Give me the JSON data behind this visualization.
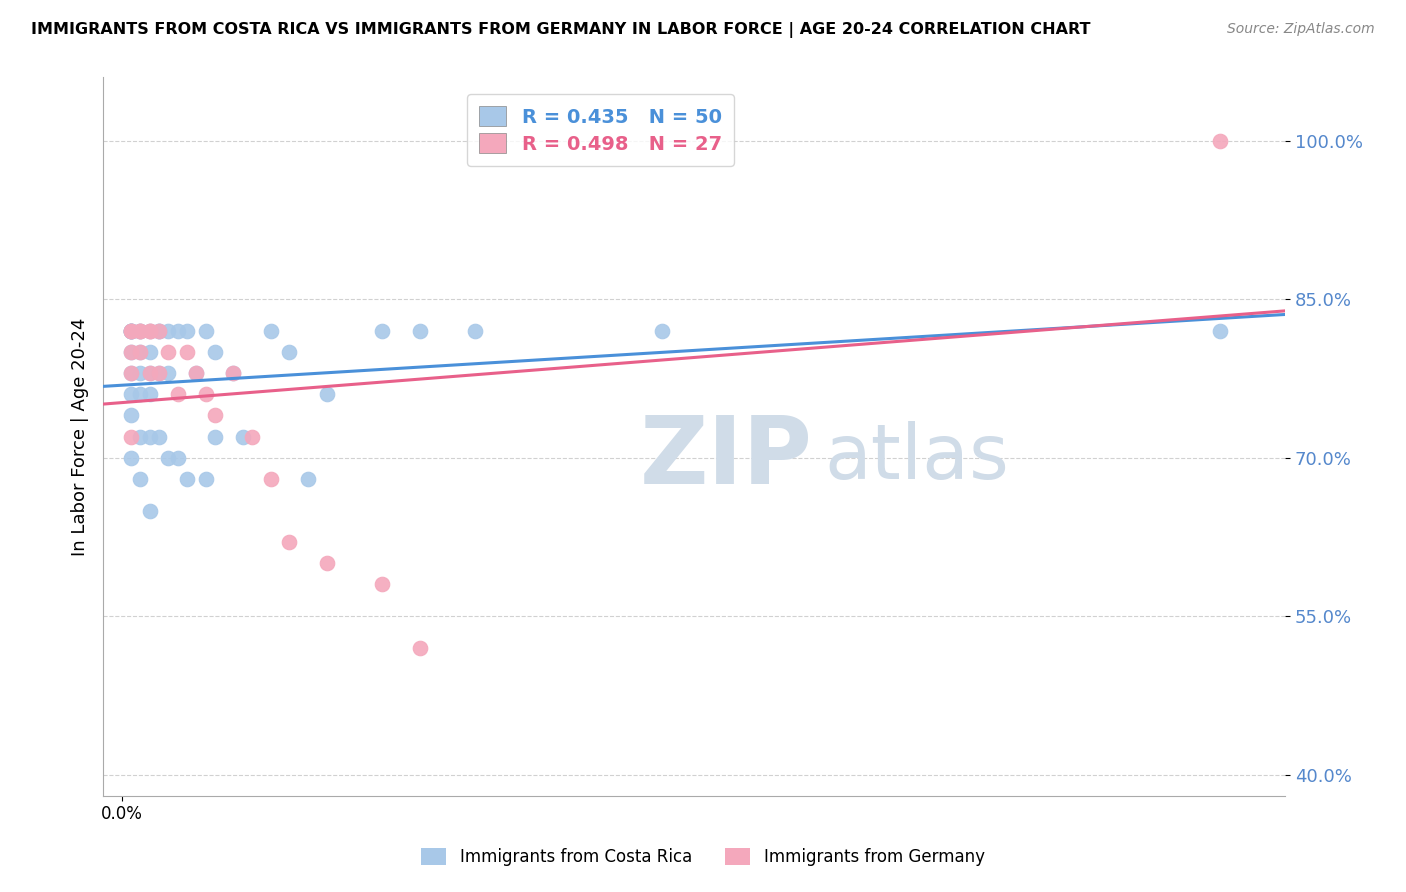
{
  "title": "IMMIGRANTS FROM COSTA RICA VS IMMIGRANTS FROM GERMANY IN LABOR FORCE | AGE 20-24 CORRELATION CHART",
  "source": "Source: ZipAtlas.com",
  "ylabel": "In Labor Force | Age 20-24",
  "xlim": [
    -0.002,
    0.125
  ],
  "ylim": [
    0.38,
    1.06
  ],
  "yticks": [
    0.4,
    0.55,
    0.7,
    0.85,
    1.0
  ],
  "ytick_labels": [
    "40.0%",
    "55.0%",
    "70.0%",
    "85.0%",
    "100.0%"
  ],
  "costa_rica_R": 0.435,
  "costa_rica_N": 50,
  "germany_R": 0.498,
  "germany_N": 27,
  "costa_rica_color": "#a8c8e8",
  "germany_color": "#f4a8bc",
  "costa_rica_line_color": "#4a90d9",
  "germany_line_color": "#e8608a",
  "tick_color": "#5588cc",
  "background_color": "#ffffff",
  "grid_color": "#cccccc",
  "watermark_zip": "ZIP",
  "watermark_atlas": "atlas",
  "costa_rica_x": [
    0.001,
    0.001,
    0.001,
    0.001,
    0.001,
    0.001,
    0.001,
    0.001,
    0.001,
    0.001,
    0.002,
    0.002,
    0.002,
    0.002,
    0.002,
    0.002,
    0.002,
    0.003,
    0.003,
    0.003,
    0.003,
    0.003,
    0.003,
    0.004,
    0.004,
    0.004,
    0.004,
    0.005,
    0.005,
    0.005,
    0.006,
    0.006,
    0.007,
    0.007,
    0.008,
    0.009,
    0.009,
    0.01,
    0.01,
    0.012,
    0.013,
    0.016,
    0.018,
    0.02,
    0.022,
    0.028,
    0.032,
    0.038,
    0.058,
    0.118
  ],
  "costa_rica_y": [
    0.82,
    0.82,
    0.82,
    0.82,
    0.82,
    0.8,
    0.78,
    0.76,
    0.74,
    0.7,
    0.82,
    0.82,
    0.8,
    0.78,
    0.76,
    0.72,
    0.68,
    0.82,
    0.8,
    0.78,
    0.76,
    0.72,
    0.65,
    0.82,
    0.82,
    0.78,
    0.72,
    0.82,
    0.78,
    0.7,
    0.82,
    0.7,
    0.82,
    0.68,
    0.78,
    0.82,
    0.68,
    0.8,
    0.72,
    0.78,
    0.72,
    0.82,
    0.8,
    0.68,
    0.76,
    0.82,
    0.82,
    0.82,
    0.82,
    0.82
  ],
  "germany_x": [
    0.001,
    0.001,
    0.001,
    0.001,
    0.001,
    0.002,
    0.002,
    0.002,
    0.003,
    0.003,
    0.003,
    0.004,
    0.004,
    0.005,
    0.006,
    0.007,
    0.008,
    0.009,
    0.01,
    0.012,
    0.014,
    0.016,
    0.018,
    0.022,
    0.028,
    0.032,
    0.118
  ],
  "germany_y": [
    0.82,
    0.82,
    0.8,
    0.78,
    0.72,
    0.82,
    0.82,
    0.8,
    0.82,
    0.82,
    0.78,
    0.82,
    0.78,
    0.8,
    0.76,
    0.8,
    0.78,
    0.76,
    0.74,
    0.78,
    0.72,
    0.68,
    0.62,
    0.6,
    0.58,
    0.52,
    1.0
  ]
}
